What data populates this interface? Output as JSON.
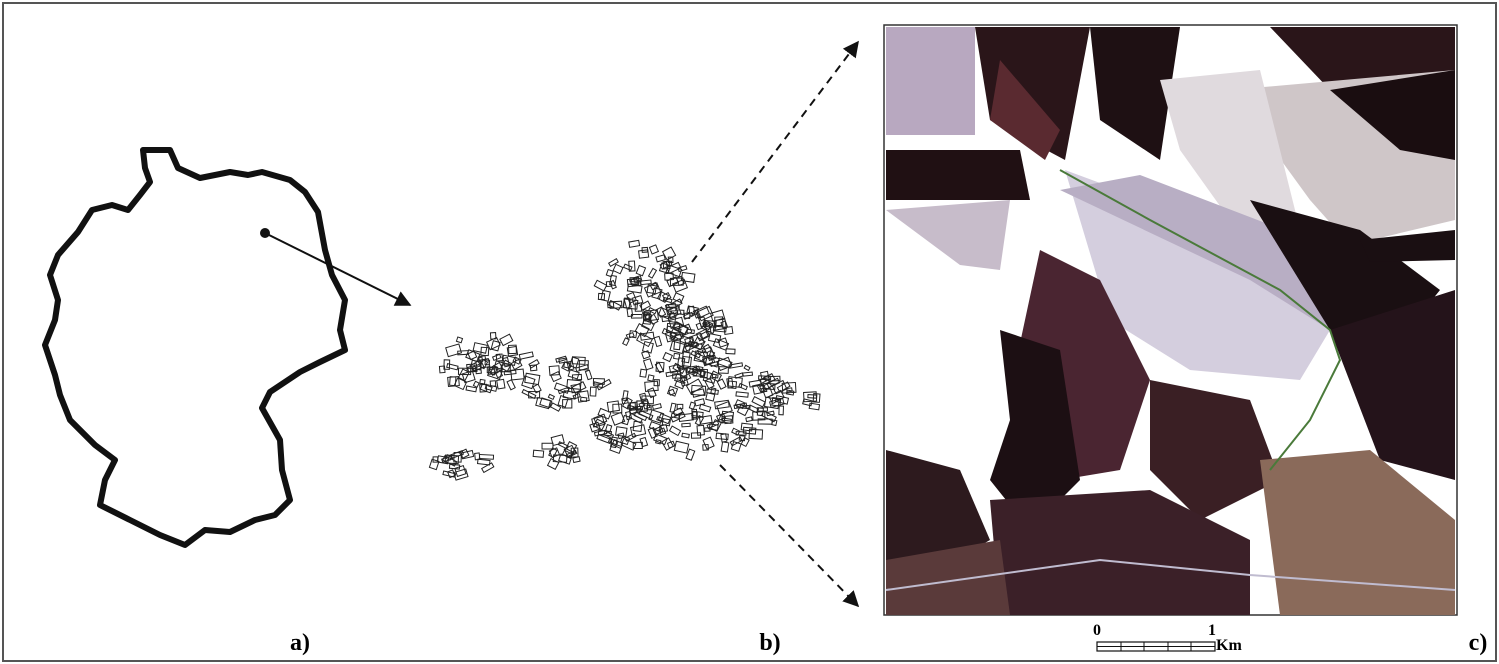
{
  "panels": [
    {
      "label": "a)"
    },
    {
      "label": "b)"
    },
    {
      "label": "c)"
    }
  ],
  "scale_bar": {
    "start": "0",
    "end": "1",
    "unit": "Km"
  }
}
